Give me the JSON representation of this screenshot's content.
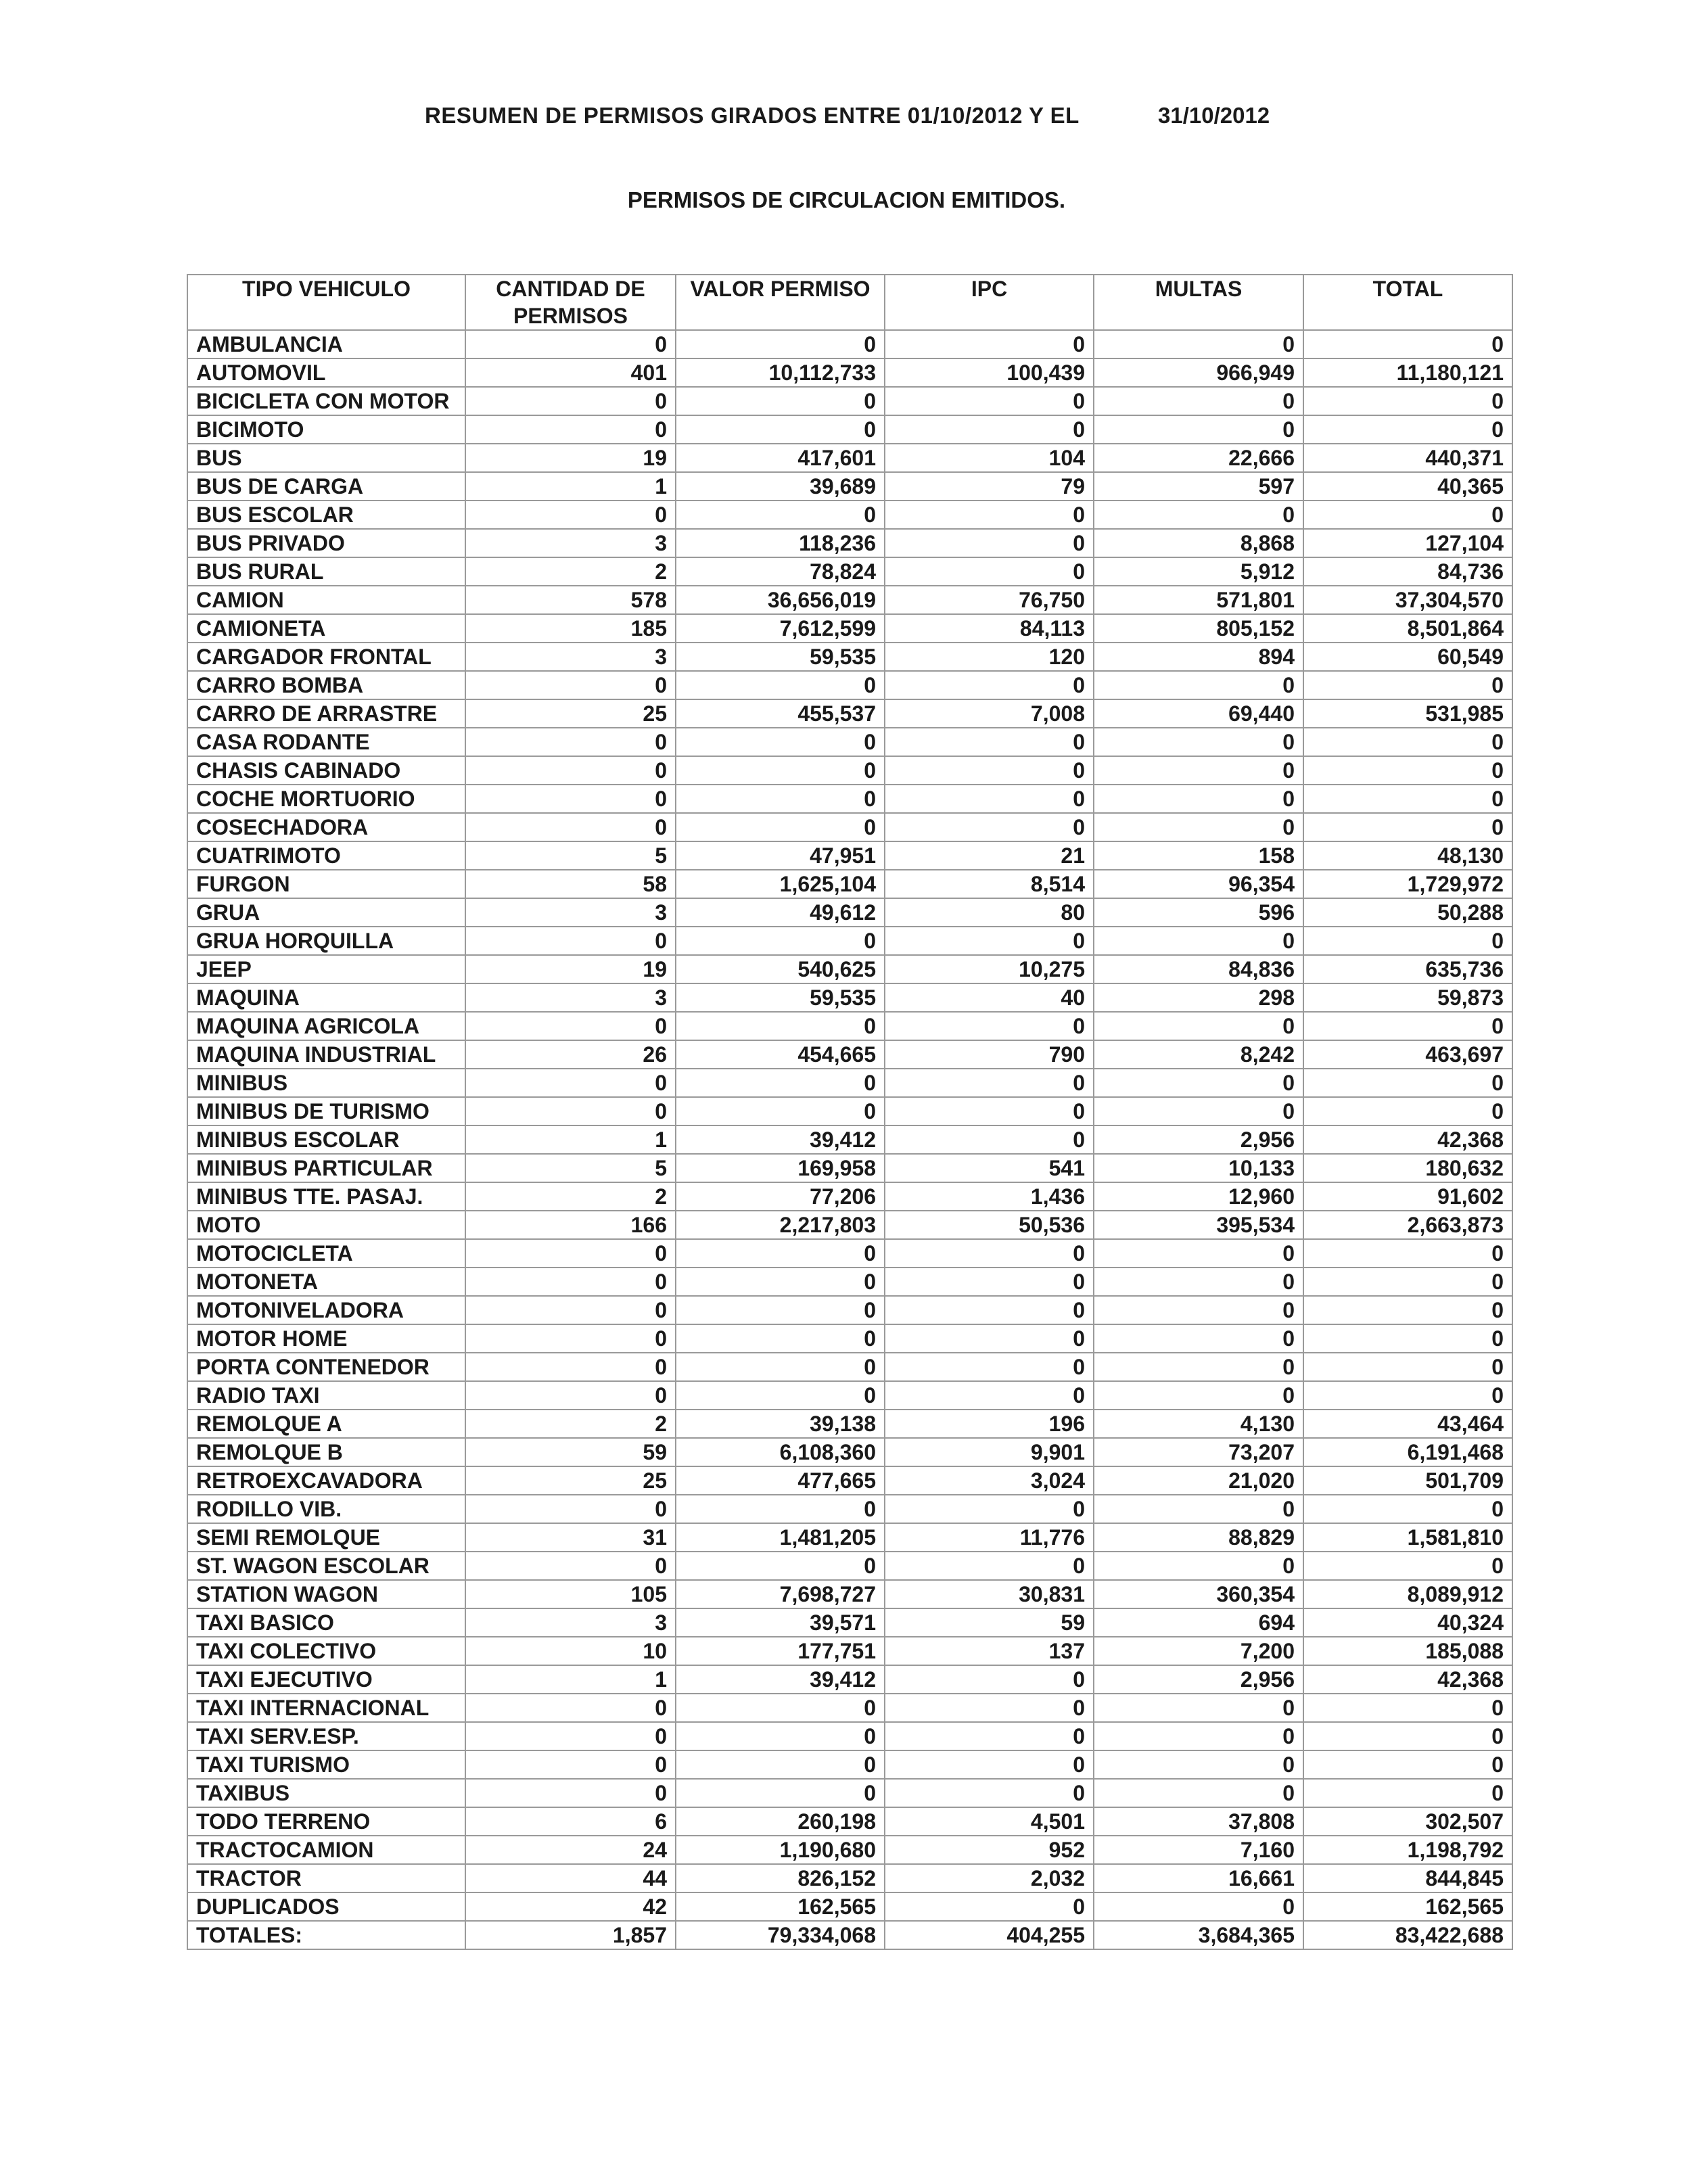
{
  "header": {
    "title": "RESUMEN DE PERMISOS GIRADOS ENTRE 01/10/2012 Y EL",
    "end_date": "31/10/2012",
    "subtitle": "PERMISOS DE CIRCULACION EMITIDOS."
  },
  "table": {
    "columns": [
      "TIPO VEHICULO",
      "CANTIDAD DE PERMISOS",
      "VALOR PERMISO",
      "IPC",
      "MULTAS",
      "TOTAL"
    ],
    "rows": [
      [
        "AMBULANCIA",
        "0",
        "0",
        "0",
        "0",
        "0"
      ],
      [
        "AUTOMOVIL",
        "401",
        "10,112,733",
        "100,439",
        "966,949",
        "11,180,121"
      ],
      [
        "BICICLETA CON MOTOR",
        "0",
        "0",
        "0",
        "0",
        "0"
      ],
      [
        "BICIMOTO",
        "0",
        "0",
        "0",
        "0",
        "0"
      ],
      [
        "BUS",
        "19",
        "417,601",
        "104",
        "22,666",
        "440,371"
      ],
      [
        "BUS DE CARGA",
        "1",
        "39,689",
        "79",
        "597",
        "40,365"
      ],
      [
        "BUS ESCOLAR",
        "0",
        "0",
        "0",
        "0",
        "0"
      ],
      [
        "BUS PRIVADO",
        "3",
        "118,236",
        "0",
        "8,868",
        "127,104"
      ],
      [
        "BUS RURAL",
        "2",
        "78,824",
        "0",
        "5,912",
        "84,736"
      ],
      [
        "CAMION",
        "578",
        "36,656,019",
        "76,750",
        "571,801",
        "37,304,570"
      ],
      [
        "CAMIONETA",
        "185",
        "7,612,599",
        "84,113",
        "805,152",
        "8,501,864"
      ],
      [
        "CARGADOR FRONTAL",
        "3",
        "59,535",
        "120",
        "894",
        "60,549"
      ],
      [
        "CARRO BOMBA",
        "0",
        "0",
        "0",
        "0",
        "0"
      ],
      [
        "CARRO DE ARRASTRE",
        "25",
        "455,537",
        "7,008",
        "69,440",
        "531,985"
      ],
      [
        "CASA RODANTE",
        "0",
        "0",
        "0",
        "0",
        "0"
      ],
      [
        "CHASIS CABINADO",
        "0",
        "0",
        "0",
        "0",
        "0"
      ],
      [
        "COCHE MORTUORIO",
        "0",
        "0",
        "0",
        "0",
        "0"
      ],
      [
        "COSECHADORA",
        "0",
        "0",
        "0",
        "0",
        "0"
      ],
      [
        "CUATRIMOTO",
        "5",
        "47,951",
        "21",
        "158",
        "48,130"
      ],
      [
        "FURGON",
        "58",
        "1,625,104",
        "8,514",
        "96,354",
        "1,729,972"
      ],
      [
        "GRUA",
        "3",
        "49,612",
        "80",
        "596",
        "50,288"
      ],
      [
        "GRUA HORQUILLA",
        "0",
        "0",
        "0",
        "0",
        "0"
      ],
      [
        "JEEP",
        "19",
        "540,625",
        "10,275",
        "84,836",
        "635,736"
      ],
      [
        "MAQUINA",
        "3",
        "59,535",
        "40",
        "298",
        "59,873"
      ],
      [
        "MAQUINA AGRICOLA",
        "0",
        "0",
        "0",
        "0",
        "0"
      ],
      [
        "MAQUINA INDUSTRIAL",
        "26",
        "454,665",
        "790",
        "8,242",
        "463,697"
      ],
      [
        "MINIBUS",
        "0",
        "0",
        "0",
        "0",
        "0"
      ],
      [
        "MINIBUS DE TURISMO",
        "0",
        "0",
        "0",
        "0",
        "0"
      ],
      [
        "MINIBUS ESCOLAR",
        "1",
        "39,412",
        "0",
        "2,956",
        "42,368"
      ],
      [
        "MINIBUS PARTICULAR",
        "5",
        "169,958",
        "541",
        "10,133",
        "180,632"
      ],
      [
        "MINIBUS TTE. PASAJ.",
        "2",
        "77,206",
        "1,436",
        "12,960",
        "91,602"
      ],
      [
        "MOTO",
        "166",
        "2,217,803",
        "50,536",
        "395,534",
        "2,663,873"
      ],
      [
        "MOTOCICLETA",
        "0",
        "0",
        "0",
        "0",
        "0"
      ],
      [
        "MOTONETA",
        "0",
        "0",
        "0",
        "0",
        "0"
      ],
      [
        "MOTONIVELADORA",
        "0",
        "0",
        "0",
        "0",
        "0"
      ],
      [
        "MOTOR HOME",
        "0",
        "0",
        "0",
        "0",
        "0"
      ],
      [
        "PORTA CONTENEDOR",
        "0",
        "0",
        "0",
        "0",
        "0"
      ],
      [
        "RADIO TAXI",
        "0",
        "0",
        "0",
        "0",
        "0"
      ],
      [
        "REMOLQUE A",
        "2",
        "39,138",
        "196",
        "4,130",
        "43,464"
      ],
      [
        "REMOLQUE B",
        "59",
        "6,108,360",
        "9,901",
        "73,207",
        "6,191,468"
      ],
      [
        "RETROEXCAVADORA",
        "25",
        "477,665",
        "3,024",
        "21,020",
        "501,709"
      ],
      [
        "RODILLO VIB.",
        "0",
        "0",
        "0",
        "0",
        "0"
      ],
      [
        "SEMI REMOLQUE",
        "31",
        "1,481,205",
        "11,776",
        "88,829",
        "1,581,810"
      ],
      [
        "ST. WAGON ESCOLAR",
        "0",
        "0",
        "0",
        "0",
        "0"
      ],
      [
        "STATION WAGON",
        "105",
        "7,698,727",
        "30,831",
        "360,354",
        "8,089,912"
      ],
      [
        "TAXI BASICO",
        "3",
        "39,571",
        "59",
        "694",
        "40,324"
      ],
      [
        "TAXI COLECTIVO",
        "10",
        "177,751",
        "137",
        "7,200",
        "185,088"
      ],
      [
        "TAXI EJECUTIVO",
        "1",
        "39,412",
        "0",
        "2,956",
        "42,368"
      ],
      [
        "TAXI INTERNACIONAL",
        "0",
        "0",
        "0",
        "0",
        "0"
      ],
      [
        "TAXI SERV.ESP.",
        "0",
        "0",
        "0",
        "0",
        "0"
      ],
      [
        "TAXI TURISMO",
        "0",
        "0",
        "0",
        "0",
        "0"
      ],
      [
        "TAXIBUS",
        "0",
        "0",
        "0",
        "0",
        "0"
      ],
      [
        "TODO TERRENO",
        "6",
        "260,198",
        "4,501",
        "37,808",
        "302,507"
      ],
      [
        "TRACTOCAMION",
        "24",
        "1,190,680",
        "952",
        "7,160",
        "1,198,792"
      ],
      [
        "TRACTOR",
        "44",
        "826,152",
        "2,032",
        "16,661",
        "844,845"
      ],
      [
        "DUPLICADOS",
        "42",
        "162,565",
        "0",
        "0",
        "162,565"
      ]
    ],
    "totals": [
      "TOTALES:",
      "1,857",
      "79,334,068",
      "404,255",
      "3,684,365",
      "83,422,688"
    ]
  }
}
